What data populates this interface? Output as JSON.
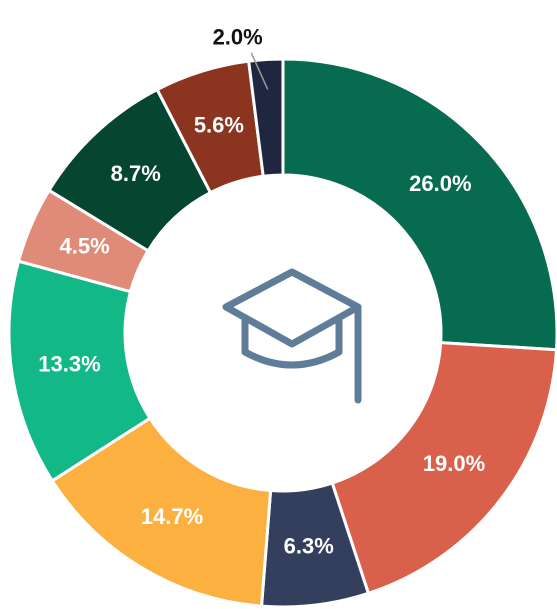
{
  "chart_data": {
    "type": "donut",
    "values": [
      26.0,
      19.0,
      6.3,
      14.7,
      13.3,
      4.5,
      8.7,
      5.6,
      2.0
    ],
    "value_labels": [
      "26.0%",
      "19.0%",
      "6.3%",
      "14.7%",
      "13.3%",
      "4.5%",
      "8.7%",
      "5.6%",
      "2.0%"
    ],
    "colors": [
      "#076b50",
      "#d9604a",
      "#343f5e",
      "#fbb040",
      "#12b886",
      "#e08a78",
      "#064530",
      "#8b3520",
      "#1f2740"
    ]
  }
}
